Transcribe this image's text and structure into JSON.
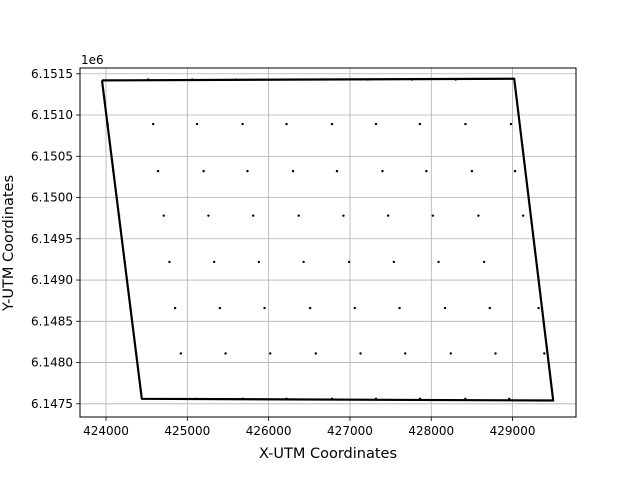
{
  "chart_data": {
    "type": "scatter",
    "title": "",
    "xlabel": "X-UTM Coordinates",
    "ylabel": "Y-UTM Coordinates",
    "y_offset_label": "1e6",
    "xlim": [
      423680,
      429780
    ],
    "ylim": [
      6147340,
      6151570
    ],
    "grid": true,
    "x_ticks": [
      424000,
      425000,
      426000,
      427000,
      428000,
      429000
    ],
    "x_tick_labels": [
      "424000",
      "425000",
      "426000",
      "427000",
      "428000",
      "429000"
    ],
    "y_ticks": [
      6147500,
      6148000,
      6148500,
      6149000,
      6149500,
      6150000,
      6150500,
      6151000,
      6151500
    ],
    "y_tick_labels": [
      "6.1475",
      "6.1480",
      "6.1485",
      "6.1490",
      "6.1495",
      "6.1500",
      "6.1505",
      "6.1510",
      "6.1515"
    ],
    "boundary": {
      "color": "#000000",
      "x": [
        423950,
        429020,
        429500,
        424440,
        423950
      ],
      "y": [
        6151420,
        6151440,
        6147540,
        6147560,
        6151420
      ]
    },
    "points": {
      "color": "#000000",
      "rows": [
        {
          "y": 6151430,
          "x": [
            424520,
            425060,
            425600,
            426140,
            426680,
            427220,
            427760,
            428300
          ]
        },
        {
          "y": 6150890,
          "x": [
            424020,
            424580,
            425120,
            425680,
            426220,
            426780,
            427320,
            427860,
            428420,
            428980
          ]
        },
        {
          "y": 6150320,
          "x": [
            424090,
            424640,
            425200,
            425740,
            426300,
            426840,
            427400,
            427940,
            428500,
            429030
          ]
        },
        {
          "y": 6149780,
          "x": [
            424160,
            424710,
            425260,
            425810,
            426370,
            426920,
            427470,
            428020,
            428580,
            429130
          ]
        },
        {
          "y": 6149220,
          "x": [
            424230,
            424780,
            425330,
            425880,
            426430,
            426990,
            427540,
            428090,
            428650
          ]
        },
        {
          "y": 6148660,
          "x": [
            424300,
            424850,
            425400,
            425950,
            426510,
            427060,
            427610,
            428170,
            428720,
            429320
          ]
        },
        {
          "y": 6148110,
          "x": [
            424370,
            424920,
            425470,
            426020,
            426580,
            427130,
            427680,
            428240,
            428790,
            429390
          ]
        },
        {
          "y": 6147560,
          "x": [
            425100,
            425680,
            426220,
            426780,
            427320,
            427860,
            428420,
            428960
          ]
        }
      ]
    }
  }
}
